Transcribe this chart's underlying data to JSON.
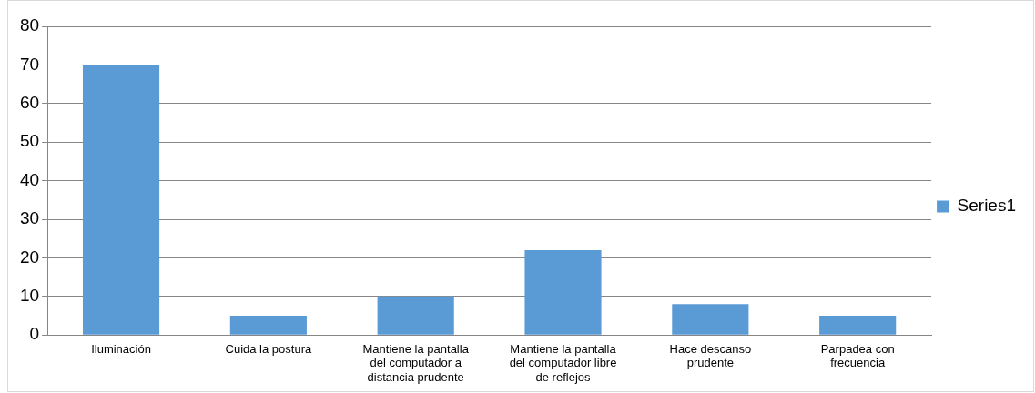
{
  "chart_data": {
    "type": "bar",
    "categories": [
      "Iluminación",
      "Cuida la postura",
      "Mantiene la pantalla del computador a distancia prudente",
      "Mantiene la pantalla del computador libre de reflejos",
      "Hace descanso prudente",
      "Parpadea con frecuencia"
    ],
    "series": [
      {
        "name": "Series1",
        "color": "#5b9bd5",
        "values": [
          70,
          5,
          10,
          22,
          8,
          5
        ]
      }
    ],
    "ylim": [
      0,
      80
    ],
    "yticks": [
      0,
      10,
      20,
      30,
      40,
      50,
      60,
      70,
      80
    ],
    "grid": "y",
    "legend": "right"
  }
}
